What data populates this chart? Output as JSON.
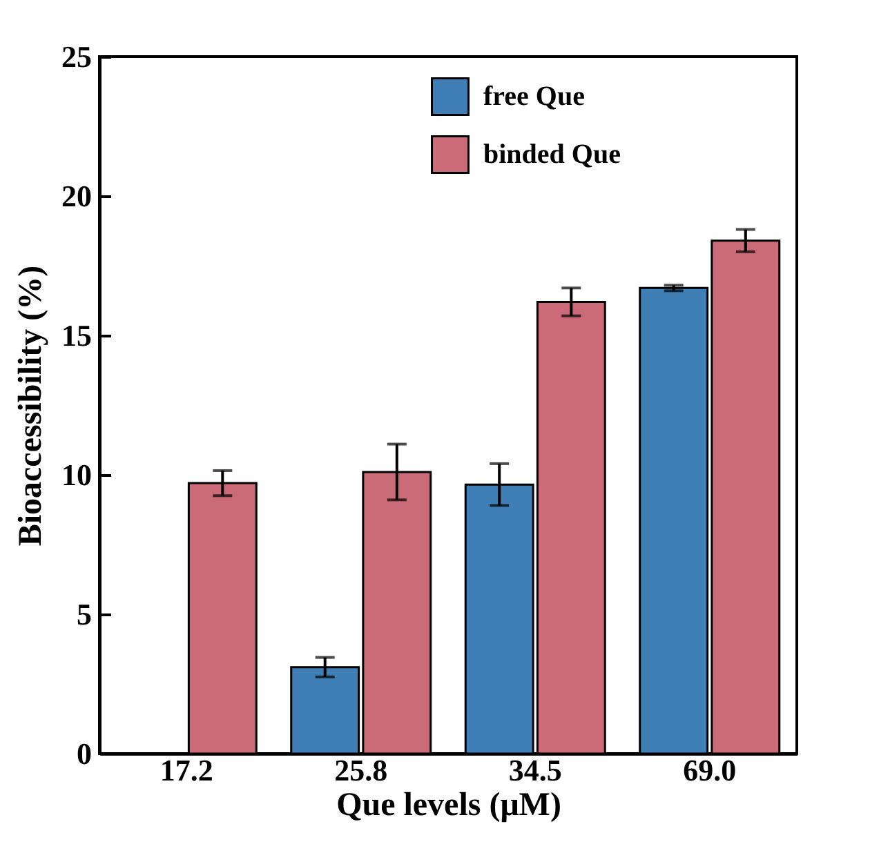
{
  "chart_data": {
    "type": "bar",
    "xlabel": "Que levels (μM)",
    "ylabel": "Bioaccessibility (%)",
    "categories": [
      "17.2",
      "25.8",
      "34.5",
      "69.0"
    ],
    "series": [
      {
        "name": "free Que",
        "color": "#3f7fb5",
        "values": [
          null,
          3.1,
          9.65,
          16.7
        ],
        "errors": [
          null,
          0.35,
          0.75,
          0.1
        ]
      },
      {
        "name": "binded Que",
        "color": "#cb6b78",
        "values": [
          9.7,
          10.1,
          16.2,
          18.4
        ],
        "errors": [
          0.45,
          1.0,
          0.5,
          0.4
        ]
      }
    ],
    "ylim": [
      0,
      25
    ],
    "yticks": [
      0,
      5,
      10,
      15,
      20,
      25
    ],
    "grid": false,
    "legend": "top right"
  }
}
